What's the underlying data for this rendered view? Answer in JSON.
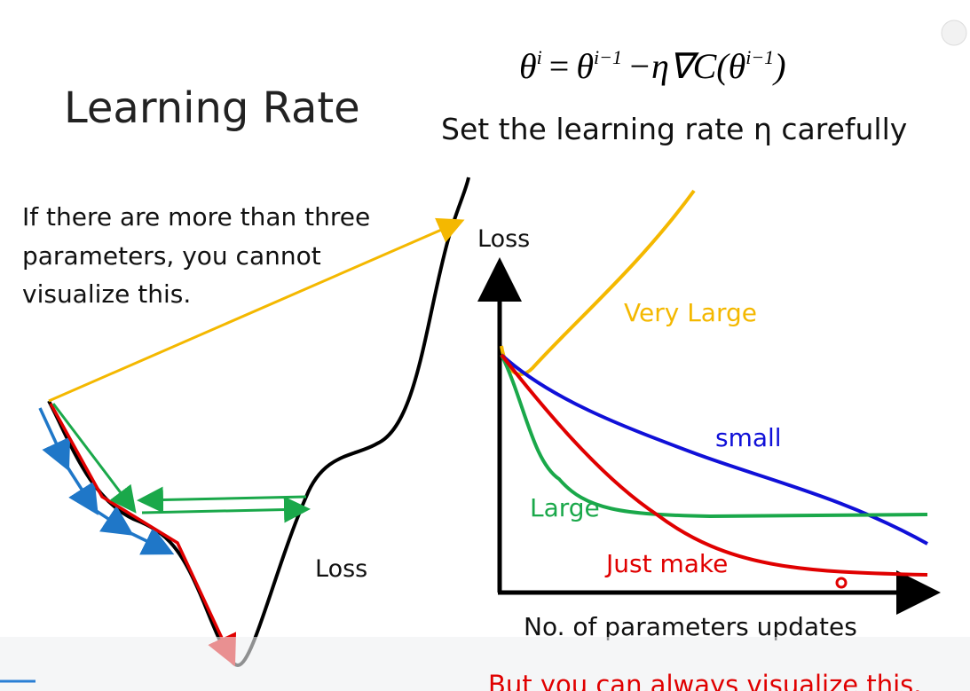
{
  "header": {
    "title": "Learning Rate",
    "subtitle": "Set the learning rate η carefully",
    "formula": [
      "θ",
      "i",
      "=",
      "θ",
      "i−1",
      "−η∇C(",
      "θ",
      "i−1",
      ")"
    ]
  },
  "left_panel": {
    "note": [
      "If there are more than three",
      "parameters, you cannot",
      "visualize this."
    ],
    "curve_label": "Loss"
  },
  "right_panel": {
    "y_label": "Loss",
    "x_label": "No. of parameters updates",
    "curves": [
      "Very Large",
      "small",
      "Large",
      "Just make"
    ]
  },
  "footer": "But you can always visualize this."
}
